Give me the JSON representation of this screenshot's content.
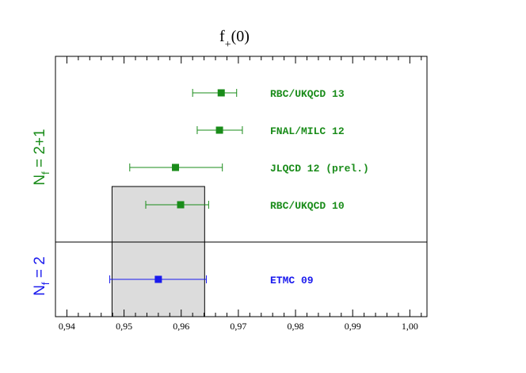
{
  "chart_data": {
    "type": "scatter",
    "title_main": "f",
    "title_sub": "+",
    "title_arg": "(0)",
    "xlabel": "",
    "ylabel": "",
    "xlim": [
      0.938,
      1.003
    ],
    "x_ticks": [
      "0,94",
      "0,95",
      "0,96",
      "0,97",
      "0,98",
      "0,99",
      "1,00"
    ],
    "x_tick_values": [
      0.94,
      0.95,
      0.96,
      0.97,
      0.98,
      0.99,
      1.0
    ],
    "grid": false,
    "groups": [
      {
        "label_main": "N",
        "label_sub": "f",
        "label_rest": " = 2+1",
        "color": "#1a8c1a",
        "points": [
          {
            "label": "RBC/UKQCD 13",
            "value": 0.967,
            "err_low": 0.962,
            "err_high": 0.9697
          },
          {
            "label": "FNAL/MILC 12",
            "value": 0.9667,
            "err_low": 0.9628,
            "err_high": 0.9707
          },
          {
            "label": "JLQCD 12 (prel.)",
            "value": 0.959,
            "err_low": 0.951,
            "err_high": 0.9672
          },
          {
            "label": "RBC/UKQCD 10",
            "value": 0.9599,
            "err_low": 0.9538,
            "err_high": 0.9648
          }
        ]
      },
      {
        "label_main": "N",
        "label_sub": "f",
        "label_rest": " = 2",
        "color": "#1a1aee",
        "points": [
          {
            "label": "ETMC 09",
            "value": 0.956,
            "err_low": 0.9475,
            "err_high": 0.9644
          }
        ]
      }
    ],
    "band": {
      "x_low": 0.9479,
      "x_high": 0.9641,
      "color": "#dcdcdc"
    }
  }
}
